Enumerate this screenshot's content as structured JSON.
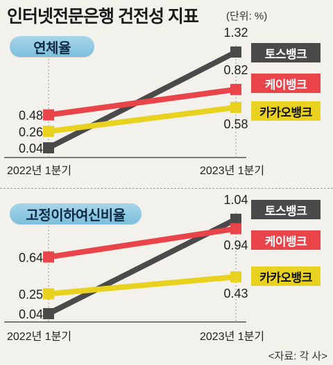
{
  "title": "인터넷전문은행 건전성 지표",
  "unit": "(단위: %)",
  "source": "<자료: 각 사>",
  "colors": {
    "toss": "#4a4a4a",
    "kbank": "#e8444a",
    "kakao": "#e9d21f",
    "pill": "#8ccbe4",
    "background": "#f3f1ec"
  },
  "chart_data": [
    {
      "type": "line",
      "title": "연체율",
      "categories": [
        "2022년 1분기",
        "2023년 1분기"
      ],
      "ylabel": "",
      "series": [
        {
          "name": "토스뱅크",
          "values": [
            0.04,
            1.32
          ]
        },
        {
          "name": "케이뱅크",
          "values": [
            0.48,
            0.82
          ]
        },
        {
          "name": "카카오뱅크",
          "values": [
            0.26,
            0.58
          ]
        }
      ]
    },
    {
      "type": "line",
      "title": "고정이하여신비율",
      "categories": [
        "2022년 1분기",
        "2023년 1분기"
      ],
      "ylabel": "",
      "series": [
        {
          "name": "토스뱅크",
          "values": [
            0.04,
            1.04
          ]
        },
        {
          "name": "케이뱅크",
          "values": [
            0.64,
            0.94
          ]
        },
        {
          "name": "카카오뱅크",
          "values": [
            0.25,
            0.43
          ]
        }
      ]
    }
  ]
}
